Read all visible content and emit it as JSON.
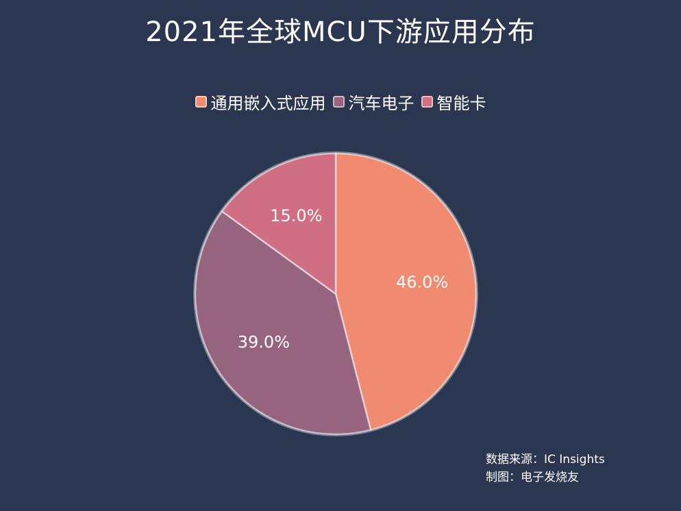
{
  "chart_data": {
    "type": "pie",
    "title": "2021年全球MCU下游应用分布",
    "categories": [
      "通用嵌入式应用",
      "汽车电子",
      "智能卡"
    ],
    "values": [
      46.0,
      39.0,
      15.0
    ],
    "labels": [
      "46.0%",
      "39.0%",
      "15.0%"
    ],
    "colors": [
      "#f08a70",
      "#96647f",
      "#d06e84"
    ],
    "legend": "top-center",
    "start_angle_deg": 0,
    "direction": "clockwise"
  },
  "source": {
    "line1": "数据来源：IC Insights",
    "line2": "制图：电子发烧友"
  }
}
